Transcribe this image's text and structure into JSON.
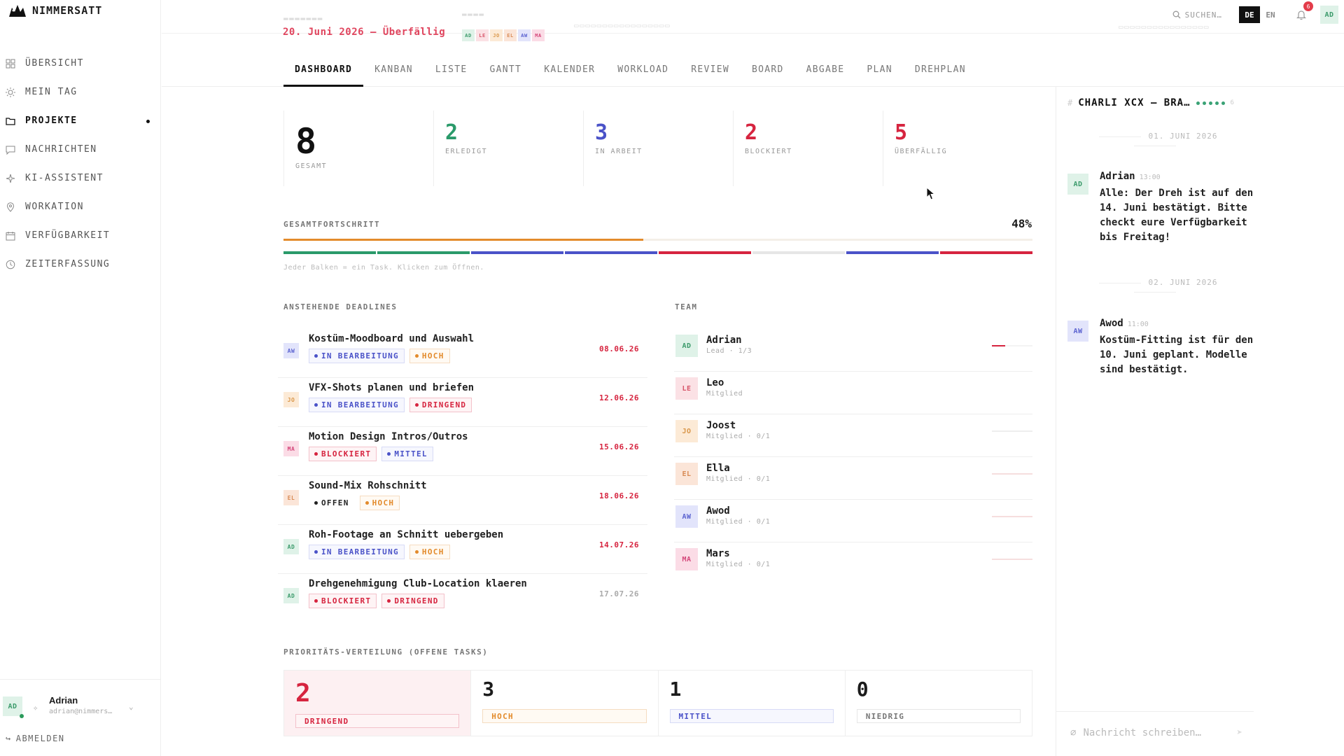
{
  "app": {
    "name": "NIMMERSATT"
  },
  "sidebar": {
    "items": [
      {
        "label": "ÜBERSICHT",
        "icon": "grid-icon"
      },
      {
        "label": "MEIN TAG",
        "icon": "sun-icon"
      },
      {
        "label": "PROJEKTE",
        "icon": "folder-icon",
        "active": true
      },
      {
        "label": "NACHRICHTEN",
        "icon": "message-icon"
      },
      {
        "label": "KI-ASSISTENT",
        "icon": "sparkle-icon"
      },
      {
        "label": "WORKATION",
        "icon": "pin-icon"
      },
      {
        "label": "VERFÜGBARKEIT",
        "icon": "calendar-icon"
      },
      {
        "label": "ZEITERFASSUNG",
        "icon": "clock-icon"
      }
    ],
    "user": {
      "initials": "AD",
      "name": "Adrian",
      "email": "adrian@nimmers…"
    },
    "logout": "ABMELDEN"
  },
  "header": {
    "due_text": "20. Juni 2026 — Überfällig",
    "search_label": "SUCHEN…",
    "lang_active": "DE",
    "lang_other": "EN",
    "notifications": "6",
    "user_initials": "AD",
    "team_initials": [
      "AD",
      "LE",
      "JO",
      "EL",
      "AW",
      "MA"
    ]
  },
  "tabs": [
    "DASHBOARD",
    "KANBAN",
    "LISTE",
    "GANTT",
    "KALENDER",
    "WORKLOAD",
    "REVIEW",
    "BOARD",
    "ABGABE",
    "PLAN",
    "DREHPLAN"
  ],
  "stats": [
    {
      "value": "8",
      "label": "GESAMT",
      "color": "#111111"
    },
    {
      "value": "2",
      "label": "ERLEDIGT",
      "color": "#2a9a6a"
    },
    {
      "value": "3",
      "label": "IN ARBEIT",
      "color": "#4a52c8"
    },
    {
      "value": "2",
      "label": "BLOCKIERT",
      "color": "#d6243f"
    },
    {
      "value": "5",
      "label": "ÜBERFÄLLIG",
      "color": "#d6243f"
    }
  ],
  "progress": {
    "title": "GESAMTFORTSCHRITT",
    "percent_label": "48%",
    "percent": 48,
    "hint": "Jeder Balken = ein Task. Klicken zum Öffnen.",
    "task_colors": [
      "#2a9a6a",
      "#2a9a6a",
      "#4a52c8",
      "#4a52c8",
      "#d6243f",
      "#e6e6e6",
      "#4a52c8",
      "#d6243f"
    ]
  },
  "deadlines": {
    "title": "ANSTEHENDE DEADLINES",
    "items": [
      {
        "initials": "AW",
        "avatar": "aw",
        "title": "Kostüm-Moodboard und Auswahl",
        "status": "IN BEARBEITUNG",
        "status_type": "blue",
        "priority": "HOCH",
        "priority_type": "orange",
        "date": "08.06.26",
        "date_color": "#d6243f"
      },
      {
        "initials": "JO",
        "avatar": "jo",
        "title": "VFX-Shots planen und briefen",
        "status": "IN BEARBEITUNG",
        "status_type": "blue",
        "priority": "DRINGEND",
        "priority_type": "red",
        "date": "12.06.26",
        "date_color": "#d6243f"
      },
      {
        "initials": "MA",
        "avatar": "ma",
        "title": "Motion Design Intros/Outros",
        "status": "BLOCKIERT",
        "status_type": "red",
        "priority": "MITTEL",
        "priority_type": "blue",
        "date": "15.06.26",
        "date_color": "#d6243f"
      },
      {
        "initials": "EL",
        "avatar": "el",
        "title": "Sound-Mix Rohschnitt",
        "status": "OFFEN",
        "status_type": "plain",
        "priority": "HOCH",
        "priority_type": "orange",
        "date": "18.06.26",
        "date_color": "#d6243f"
      },
      {
        "initials": "AD",
        "avatar": "ad",
        "title": "Roh-Footage an Schnitt uebergeben",
        "status": "IN BEARBEITUNG",
        "status_type": "blue",
        "priority": "HOCH",
        "priority_type": "orange",
        "date": "14.07.26",
        "date_color": "#d6243f"
      },
      {
        "initials": "AD",
        "avatar": "ad",
        "title": "Drehgenehmigung Club-Location klaeren",
        "status": "BLOCKIERT",
        "status_type": "red",
        "priority": "DRINGEND",
        "priority_type": "red",
        "date": "17.07.26",
        "date_color": "#aaaaaa"
      }
    ]
  },
  "team": {
    "title": "TEAM",
    "members": [
      {
        "initials": "AD",
        "avatar": "ad",
        "name": "Adrian",
        "role": "Lead · 1/3",
        "progress": 0.33,
        "color": "#d6243f"
      },
      {
        "initials": "LE",
        "avatar": "le",
        "name": "Leo",
        "role": "Mitglied",
        "progress": 0,
        "color": "#ffffff"
      },
      {
        "initials": "JO",
        "avatar": "jo",
        "name": "Joost",
        "role": "Mitglied · 0/1",
        "progress": 0,
        "color": "#eeeeee"
      },
      {
        "initials": "EL",
        "avatar": "el",
        "name": "Ella",
        "role": "Mitglied · 0/1",
        "progress": 0,
        "color": "#f6dede"
      },
      {
        "initials": "AW",
        "avatar": "aw",
        "name": "Awod",
        "role": "Mitglied · 0/1",
        "progress": 0,
        "color": "#f6dede"
      },
      {
        "initials": "MA",
        "avatar": "ma",
        "name": "Mars",
        "role": "Mitglied · 0/1",
        "progress": 0,
        "color": "#f6dede"
      }
    ]
  },
  "priority": {
    "title": "PRIORITÄTS-VERTEILUNG (OFFENE TASKS)",
    "cards": [
      {
        "value": "2",
        "label": "DRINGEND",
        "type": "red",
        "highlight": true
      },
      {
        "value": "3",
        "label": "HOCH",
        "type": "orange"
      },
      {
        "value": "1",
        "label": "MITTEL",
        "type": "blue"
      },
      {
        "value": "0",
        "label": "NIEDRIG",
        "type": "gray"
      }
    ]
  },
  "chat": {
    "title": "CHARLI XCX — BRA…",
    "dates": [
      "01. JUNI 2026",
      "02. JUNI 2026"
    ],
    "messages": [
      {
        "initials": "AD",
        "avatar": "ad",
        "author": "Adrian",
        "time": "13:00",
        "text": "Alle: Der Dreh ist auf den 14. Juni bestätigt. Bitte checkt eure Verfügbarkeit bis Freitag!"
      },
      {
        "initials": "AW",
        "avatar": "aw",
        "author": "Awod",
        "time": "11:00",
        "text": "Kostüm-Fitting ist für den 10. Juni geplant. Modelle sind bestätigt."
      }
    ],
    "placeholder": "Nachricht schreiben…"
  },
  "colors": {
    "red": "#d6243f",
    "blue": "#4a52c8",
    "orange": "#e38b2c",
    "green": "#2a9a6a"
  }
}
